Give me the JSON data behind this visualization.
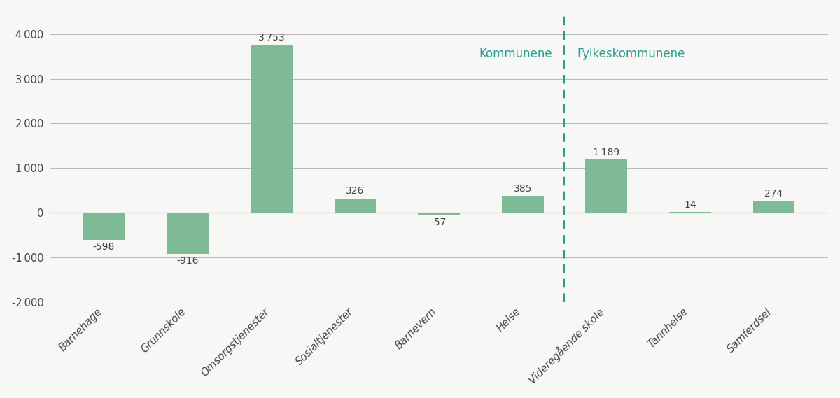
{
  "categories": [
    "Barnehage",
    "Grunnskole",
    "Omsorgstjenester",
    "Sosialtjenester",
    "Barnevern",
    "Helse",
    "Videregående skole",
    "Tannhelse",
    "Samferdsel"
  ],
  "values": [
    -598,
    -916,
    3753,
    326,
    -57,
    385,
    1189,
    14,
    274
  ],
  "bar_color": "#7dba95",
  "ylim": [
    -2000,
    4500
  ],
  "yticks": [
    -2000,
    -1000,
    0,
    1000,
    2000,
    3000,
    4000
  ],
  "kommunene_label": "Kommunene",
  "fylkeskommunene_label": "Fylkeskommunene",
  "divider_index": 5.5,
  "label_color": "#2a9d8f",
  "divider_color": "#2a9d8f",
  "background_color": "#f7f7f5",
  "grid_color": "#bbbbbb",
  "value_labels": [
    "-598",
    "-916",
    "3 753",
    "326",
    "-57",
    "385",
    "1 189",
    "14",
    "274"
  ],
  "bar_width": 0.5,
  "figure_width": 12.0,
  "figure_height": 5.69
}
